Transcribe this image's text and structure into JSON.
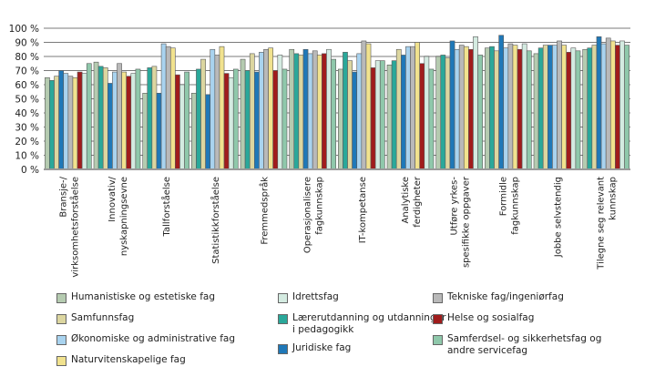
{
  "chart_data": {
    "type": "bar",
    "title": "",
    "xlabel": "",
    "ylabel": "",
    "ylim": [
      0,
      100
    ],
    "yticks": [
      "0 %",
      "10 %",
      "20 %",
      "30 %",
      "40 %",
      "50 %",
      "60 %",
      "70 %",
      "80 %",
      "90 %",
      "100 %"
    ],
    "grid": true,
    "legend_position": "bottom",
    "categories": [
      "Bransje-/\nvirksomhetsforståelse",
      "Innovativ/\nnyskapningsevne",
      "Tallforståelse",
      "Statistikkforståelse",
      "Fremmedspråk",
      "Operasjonalisere\nfagkunnskap",
      "IT-kompetanse",
      "Analytiske\nferdigheter",
      "Utføre yrkes-\nspesifikke oppgaver",
      "Formidle\nfagkunnskap",
      "Jobbe selvstendig",
      "Tilegne seg relevant\nkunnskap"
    ],
    "series": [
      {
        "name": "Humanistiske og estetiske fag",
        "color": "#b5cbb0",
        "values": [
          65,
          76,
          54,
          54,
          78,
          85,
          71,
          74,
          80,
          86,
          82,
          85
        ]
      },
      {
        "name": "Lærerutdanning og utdanninger i pedagogikk",
        "color": "#2aa89a",
        "values": [
          63,
          73,
          72,
          71,
          70,
          82,
          83,
          77,
          81,
          87,
          86,
          86
        ]
      },
      {
        "name": "Samfunnsfag",
        "color": "#dcd6a0",
        "values": [
          66,
          72,
          73,
          78,
          82,
          81,
          77,
          85,
          79,
          84,
          88,
          88
        ]
      },
      {
        "name": "Juridiske fag",
        "color": "#1f78b8",
        "values": [
          70,
          61,
          54,
          53,
          69,
          85,
          69,
          81,
          91,
          95,
          88,
          94
        ]
      },
      {
        "name": "Økonomiske og administrative fag",
        "color": "#a9d3ef",
        "values": [
          68,
          69,
          89,
          85,
          83,
          82,
          82,
          87,
          85,
          86,
          88,
          89
        ]
      },
      {
        "name": "Tekniske fag/ingeniørfag",
        "color": "#b9b9b9",
        "values": [
          66,
          75,
          87,
          81,
          85,
          84,
          91,
          87,
          88,
          89,
          91,
          93
        ]
      },
      {
        "name": "Naturvitenskapelige fag",
        "color": "#f1e28e",
        "values": [
          65,
          69,
          86,
          87,
          86,
          81,
          89,
          90,
          87,
          88,
          88,
          91
        ]
      },
      {
        "name": "Helse og sosialfag",
        "color": "#a01c1c",
        "values": [
          69,
          66,
          67,
          68,
          70,
          82,
          72,
          75,
          85,
          85,
          83,
          88
        ]
      },
      {
        "name": "Idrettsfag",
        "color": "#d4ebe1",
        "values": [
          68,
          68,
          60,
          65,
          81,
          85,
          77,
          80,
          94,
          89,
          86,
          91
        ]
      },
      {
        "name": "Samferdsel- og sikkerhetsfag og andre servicefag",
        "color": "#8fc8ab",
        "values": [
          75,
          71,
          69,
          71,
          71,
          78,
          77,
          71,
          81,
          84,
          84,
          88
        ]
      }
    ]
  },
  "legend": {
    "columns": [
      [
        0,
        2,
        4,
        6
      ],
      [
        8,
        1,
        3
      ],
      [
        5,
        7,
        9
      ]
    ],
    "labels": [
      "Humanistiske og estetiske fag",
      "Lærerutdanning og utdanninger\ni pedagogikk",
      "Samfunnsfag",
      "Juridiske fag",
      "Økonomiske og administrative fag",
      "Tekniske fag/ingeniørfag",
      "Naturvitenskapelige fag",
      "Helse og sosialfag",
      "Idrettsfag",
      "Samferdsel- og sikkerhetsfag og\nandre servicefag"
    ]
  }
}
